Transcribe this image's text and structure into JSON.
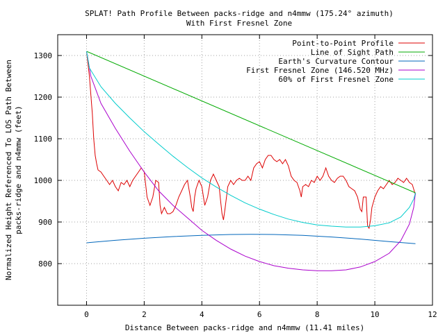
{
  "chart_data": {
    "type": "line",
    "title": "SPLAT! Path Profile Between packs-ridge and n4mmw (175.24° azimuth)",
    "subtitle": "With First Fresnel Zone",
    "xlabel": "Distance Between packs-ridge and n4mmw (11.41 miles)",
    "ylabel_line1": "Normalized Height Referenced To LOS Path Between",
    "ylabel_line2": "packs-ridge and n4mmw (feet)",
    "xlim": [
      -1,
      12
    ],
    "ylim": [
      700,
      1350
    ],
    "x_ticks": [
      0,
      2,
      4,
      6,
      8,
      10,
      12
    ],
    "y_ticks": [
      800,
      900,
      1000,
      1100,
      1200,
      1300
    ],
    "grid": true,
    "legend_position": "top-right",
    "series": [
      {
        "name": "Point-to-Point Profile",
        "color": "#dd0000",
        "points": [
          [
            0,
            1310
          ],
          [
            0.1,
            1250
          ],
          [
            0.2,
            1160
          ],
          [
            0.25,
            1100
          ],
          [
            0.3,
            1060
          ],
          [
            0.35,
            1040
          ],
          [
            0.4,
            1025
          ],
          [
            0.5,
            1020
          ],
          [
            0.6,
            1010
          ],
          [
            0.7,
            1000
          ],
          [
            0.8,
            990
          ],
          [
            0.9,
            1000
          ],
          [
            1.0,
            985
          ],
          [
            1.1,
            975
          ],
          [
            1.2,
            995
          ],
          [
            1.3,
            990
          ],
          [
            1.4,
            1000
          ],
          [
            1.5,
            985
          ],
          [
            1.6,
            1000
          ],
          [
            1.7,
            1010
          ],
          [
            1.8,
            1020
          ],
          [
            1.9,
            1030
          ],
          [
            2.0,
            1020
          ],
          [
            2.05,
            990
          ],
          [
            2.1,
            960
          ],
          [
            2.2,
            940
          ],
          [
            2.3,
            960
          ],
          [
            2.4,
            1000
          ],
          [
            2.5,
            995
          ],
          [
            2.55,
            940
          ],
          [
            2.6,
            920
          ],
          [
            2.7,
            935
          ],
          [
            2.8,
            920
          ],
          [
            2.9,
            920
          ],
          [
            3.0,
            925
          ],
          [
            3.1,
            940
          ],
          [
            3.2,
            960
          ],
          [
            3.3,
            975
          ],
          [
            3.4,
            990
          ],
          [
            3.5,
            1000
          ],
          [
            3.6,
            960
          ],
          [
            3.65,
            935
          ],
          [
            3.7,
            925
          ],
          [
            3.75,
            960
          ],
          [
            3.8,
            980
          ],
          [
            3.9,
            1000
          ],
          [
            4.0,
            985
          ],
          [
            4.1,
            940
          ],
          [
            4.2,
            960
          ],
          [
            4.3,
            1000
          ],
          [
            4.4,
            1015
          ],
          [
            4.5,
            1000
          ],
          [
            4.6,
            985
          ],
          [
            4.65,
            950
          ],
          [
            4.7,
            920
          ],
          [
            4.75,
            905
          ],
          [
            4.8,
            930
          ],
          [
            4.9,
            985
          ],
          [
            5.0,
            1000
          ],
          [
            5.1,
            990
          ],
          [
            5.2,
            1000
          ],
          [
            5.3,
            1005
          ],
          [
            5.4,
            1000
          ],
          [
            5.5,
            1000
          ],
          [
            5.6,
            1010
          ],
          [
            5.7,
            1000
          ],
          [
            5.8,
            1030
          ],
          [
            5.9,
            1040
          ],
          [
            6.0,
            1045
          ],
          [
            6.1,
            1030
          ],
          [
            6.2,
            1050
          ],
          [
            6.3,
            1060
          ],
          [
            6.4,
            1060
          ],
          [
            6.5,
            1050
          ],
          [
            6.6,
            1045
          ],
          [
            6.7,
            1050
          ],
          [
            6.8,
            1040
          ],
          [
            6.9,
            1050
          ],
          [
            7.0,
            1035
          ],
          [
            7.1,
            1010
          ],
          [
            7.2,
            1000
          ],
          [
            7.3,
            995
          ],
          [
            7.4,
            975
          ],
          [
            7.45,
            960
          ],
          [
            7.5,
            985
          ],
          [
            7.6,
            990
          ],
          [
            7.7,
            985
          ],
          [
            7.8,
            1000
          ],
          [
            7.9,
            995
          ],
          [
            8.0,
            1010
          ],
          [
            8.1,
            1000
          ],
          [
            8.2,
            1010
          ],
          [
            8.3,
            1030
          ],
          [
            8.4,
            1010
          ],
          [
            8.5,
            1000
          ],
          [
            8.6,
            995
          ],
          [
            8.7,
            1005
          ],
          [
            8.8,
            1010
          ],
          [
            8.9,
            1010
          ],
          [
            9.0,
            1000
          ],
          [
            9.1,
            985
          ],
          [
            9.2,
            980
          ],
          [
            9.3,
            975
          ],
          [
            9.4,
            960
          ],
          [
            9.5,
            930
          ],
          [
            9.55,
            925
          ],
          [
            9.6,
            960
          ],
          [
            9.7,
            960
          ],
          [
            9.75,
            890
          ],
          [
            9.8,
            885
          ],
          [
            9.85,
            905
          ],
          [
            9.9,
            935
          ],
          [
            10.0,
            960
          ],
          [
            10.1,
            975
          ],
          [
            10.2,
            985
          ],
          [
            10.3,
            980
          ],
          [
            10.4,
            990
          ],
          [
            10.5,
            1000
          ],
          [
            10.6,
            990
          ],
          [
            10.7,
            995
          ],
          [
            10.8,
            1005
          ],
          [
            10.9,
            1000
          ],
          [
            11.0,
            995
          ],
          [
            11.1,
            1005
          ],
          [
            11.2,
            995
          ],
          [
            11.3,
            990
          ],
          [
            11.41,
            965
          ]
        ]
      },
      {
        "name": "Line of Sight Path",
        "color": "#00aa00",
        "points": [
          [
            0,
            1310
          ],
          [
            11.41,
            970
          ]
        ]
      },
      {
        "name": "Earth's Curvature Contour",
        "color": "#0066bb",
        "points": [
          [
            0,
            850
          ],
          [
            1,
            856
          ],
          [
            2,
            861
          ],
          [
            3,
            865
          ],
          [
            4,
            868
          ],
          [
            5,
            870
          ],
          [
            5.7,
            870.5
          ],
          [
            6.5,
            870
          ],
          [
            7.5,
            868
          ],
          [
            8.5,
            864
          ],
          [
            9.5,
            859
          ],
          [
            10.5,
            853
          ],
          [
            11.41,
            848
          ]
        ]
      },
      {
        "name": "First Fresnel Zone (146.520 MHz)",
        "color": "#aa00cc",
        "points": [
          [
            0,
            1310
          ],
          [
            0.15,
            1250
          ],
          [
            0.5,
            1185
          ],
          [
            1,
            1125
          ],
          [
            1.5,
            1070
          ],
          [
            2,
            1020
          ],
          [
            2.5,
            975
          ],
          [
            3,
            940
          ],
          [
            3.5,
            910
          ],
          [
            4,
            880
          ],
          [
            4.5,
            856
          ],
          [
            5,
            835
          ],
          [
            5.5,
            818
          ],
          [
            6,
            805
          ],
          [
            6.5,
            795
          ],
          [
            7,
            789
          ],
          [
            7.5,
            785
          ],
          [
            8,
            783
          ],
          [
            8.5,
            783
          ],
          [
            9,
            785
          ],
          [
            9.5,
            792
          ],
          [
            10,
            805
          ],
          [
            10.5,
            825
          ],
          [
            10.9,
            855
          ],
          [
            11.2,
            895
          ],
          [
            11.35,
            935
          ],
          [
            11.41,
            970
          ]
        ]
      },
      {
        "name": "60% of First Fresnel Zone",
        "color": "#00cccc",
        "points": [
          [
            0,
            1310
          ],
          [
            0.1,
            1270
          ],
          [
            0.5,
            1225
          ],
          [
            1,
            1185
          ],
          [
            1.5,
            1150
          ],
          [
            2,
            1117
          ],
          [
            2.5,
            1087
          ],
          [
            3,
            1058
          ],
          [
            3.5,
            1031
          ],
          [
            4,
            1006
          ],
          [
            4.5,
            984
          ],
          [
            5,
            964
          ],
          [
            5.5,
            946
          ],
          [
            6,
            931
          ],
          [
            6.5,
            918
          ],
          [
            7,
            907
          ],
          [
            7.5,
            899
          ],
          [
            8,
            893
          ],
          [
            8.5,
            890
          ],
          [
            9,
            888
          ],
          [
            9.5,
            888
          ],
          [
            10,
            891
          ],
          [
            10.5,
            898
          ],
          [
            10.9,
            912
          ],
          [
            11.2,
            935
          ],
          [
            11.35,
            955
          ],
          [
            11.41,
            970
          ]
        ]
      }
    ]
  }
}
